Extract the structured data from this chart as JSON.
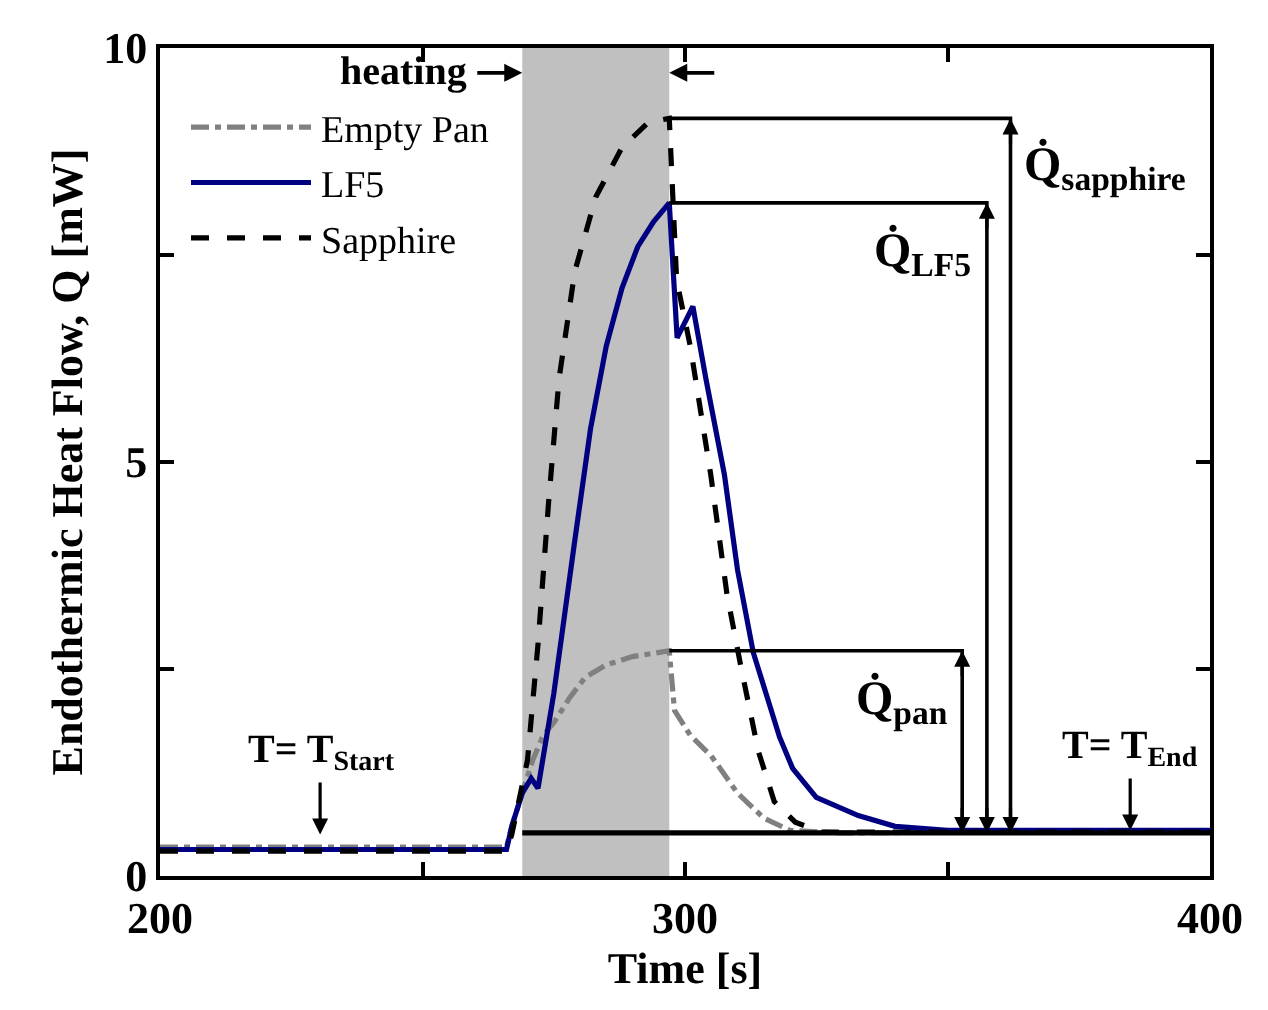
{
  "chart_data": {
    "type": "line",
    "xlabel": "Time [s]",
    "ylabel": "Endothermic Heat Flow, Q [mW]",
    "xlim": [
      200,
      400
    ],
    "xticks": [
      200,
      {
        "value": 250,
        "label": null
      },
      300,
      {
        "value": 350,
        "label": null
      },
      400
    ],
    "ylim": [
      0,
      10
    ],
    "yticks": [
      0,
      {
        "value": 2.5,
        "label": null
      },
      5,
      {
        "value": 7.5,
        "label": null
      },
      10
    ],
    "grid": false,
    "legend": "top left",
    "bands": [
      {
        "axis": "x",
        "from": 269,
        "to": 297,
        "label": "heating",
        "color": "#c0c0c0"
      }
    ],
    "series": [
      {
        "name": "Empty Pan",
        "color": "#808080",
        "line_style": "dashdot",
        "x": [
          200,
          230,
          266,
          267,
          269,
          271,
          273,
          275,
          278,
          281,
          285,
          290,
          297,
          298,
          301,
          305,
          310,
          315,
          320,
          330,
          350,
          400
        ],
        "values": [
          0.35,
          0.35,
          0.35,
          0.6,
          1.0,
          1.4,
          1.7,
          1.85,
          2.15,
          2.4,
          2.55,
          2.65,
          2.72,
          2.0,
          1.7,
          1.45,
          1.0,
          0.7,
          0.55,
          0.52,
          0.53,
          0.53
        ]
      },
      {
        "name": "LF5",
        "color": "#000080",
        "line_style": "solid",
        "x": [
          200,
          230,
          266,
          267,
          269,
          270.7,
          272,
          275,
          279,
          282,
          285,
          288,
          291,
          294,
          297,
          298.5,
          301.5,
          304,
          307.5,
          310,
          313,
          318,
          320.5,
          325,
          333,
          340,
          350,
          400
        ],
        "values": [
          0.32,
          0.32,
          0.32,
          0.6,
          1.0,
          1.18,
          1.06,
          2.2,
          4.05,
          5.4,
          6.4,
          7.1,
          7.6,
          7.9,
          8.13,
          6.5,
          6.88,
          6.0,
          4.85,
          3.7,
          2.7,
          1.68,
          1.3,
          0.95,
          0.73,
          0.6,
          0.55,
          0.55
        ]
      },
      {
        "name": "Sapphire",
        "color": "#000000",
        "line_style": "dashed",
        "x": [
          200,
          230,
          266,
          267,
          268,
          270,
          272,
          274,
          276,
          279,
          283,
          288,
          293,
          297,
          298.4,
          301,
          304.9,
          308,
          310.8,
          314,
          317,
          321,
          326,
          340,
          400
        ],
        "values": [
          0.3,
          0.3,
          0.3,
          0.5,
          0.8,
          1.4,
          2.8,
          4.5,
          6.0,
          7.3,
          8.2,
          8.8,
          9.1,
          9.15,
          7.2,
          6.4,
          4.85,
          3.4,
          2.48,
          1.5,
          0.9,
          0.65,
          0.53,
          0.53,
          0.53
        ]
      },
      {
        "color": "#000000",
        "line_style": "solid",
        "x": [
          269,
          400
        ],
        "values": [
          0.52,
          0.52
        ]
      },
      {
        "color": "#000000",
        "line_style": "solid",
        "x": [
          297,
          362,
          362
        ],
        "values": [
          9.15,
          9.15,
          0.52
        ]
      },
      {
        "color": "#000000",
        "line_style": "solid",
        "x": [
          297,
          357.5,
          357.5
        ],
        "values": [
          8.13,
          8.13,
          0.52
        ]
      },
      {
        "color": "#000000",
        "line_style": "solid",
        "x": [
          297,
          352.8,
          352.8
        ],
        "values": [
          2.72,
          2.72,
          0.52
        ]
      }
    ],
    "annotations": [
      "Q̇$_{sapphire}$",
      "Q̇$_{LF5}$",
      "Q̇$_{pan}$",
      {
        "text": "T= T$_{Start}$",
        "x": 230.5,
        "y": 0.5
      },
      {
        "text": "T= T$_{End}$",
        "x": 384.8,
        "y": 0.55
      }
    ]
  }
}
